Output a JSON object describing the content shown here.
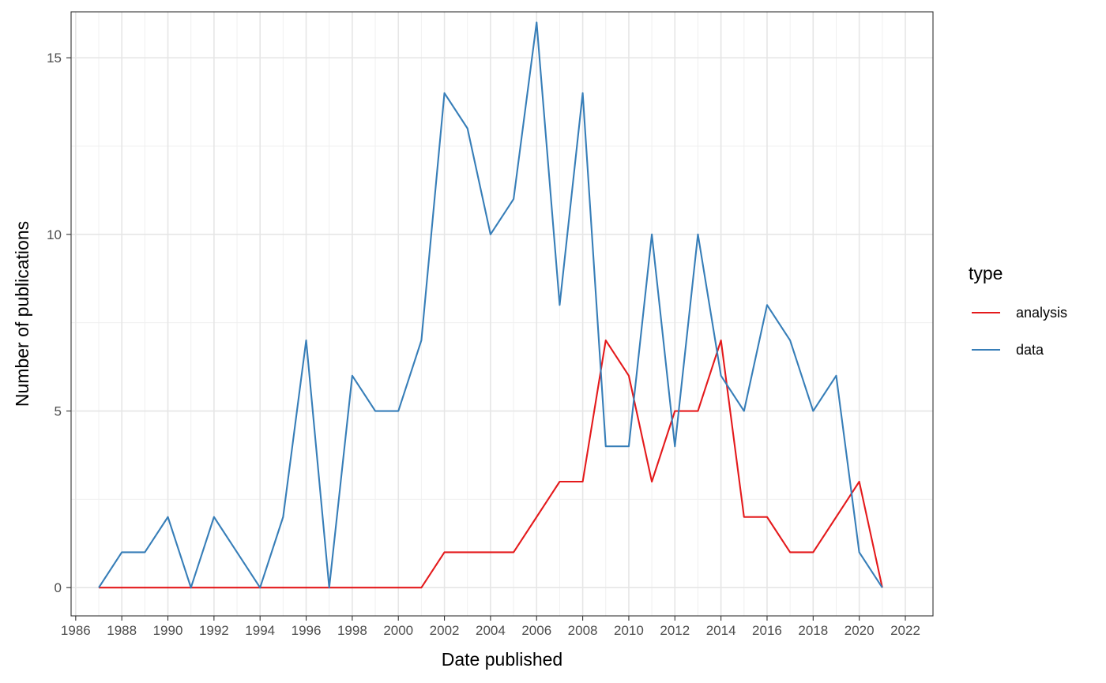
{
  "chart_data": {
    "type": "line",
    "xlabel": "Date published",
    "ylabel": "Number of publications",
    "xlim": [
      1985.8,
      2023.2
    ],
    "ylim": [
      -0.8,
      16.3
    ],
    "x_ticks": [
      1986,
      1988,
      1990,
      1992,
      1994,
      1996,
      1998,
      2000,
      2002,
      2004,
      2006,
      2008,
      2010,
      2012,
      2014,
      2016,
      2018,
      2020,
      2022
    ],
    "y_ticks": [
      0,
      5,
      10,
      15
    ],
    "grid": true,
    "legend": {
      "title": "type",
      "position": "right"
    },
    "x": [
      1987,
      1988,
      1989,
      1990,
      1991,
      1992,
      1993,
      1994,
      1995,
      1996,
      1997,
      1998,
      1999,
      2000,
      2001,
      2002,
      2003,
      2004,
      2005,
      2006,
      2007,
      2008,
      2009,
      2010,
      2011,
      2012,
      2013,
      2014,
      2015,
      2016,
      2017,
      2018,
      2019,
      2020,
      2021
    ],
    "series": [
      {
        "name": "analysis",
        "color": "#e41a1c",
        "values": [
          0,
          0,
          0,
          0,
          0,
          0,
          0,
          0,
          0,
          0,
          0,
          0,
          0,
          0,
          0,
          1,
          1,
          1,
          1,
          2,
          3,
          3,
          7,
          6,
          3,
          5,
          5,
          7,
          2,
          2,
          1,
          1,
          2,
          3,
          0
        ]
      },
      {
        "name": "data",
        "color": "#377eb8",
        "values": [
          0,
          1,
          1,
          2,
          0,
          2,
          1,
          0,
          2,
          7,
          0,
          6,
          5,
          5,
          7,
          14,
          13,
          10,
          11,
          16,
          8,
          14,
          4,
          4,
          10,
          4,
          10,
          6,
          5,
          8,
          7,
          5,
          6,
          1,
          0
        ]
      }
    ]
  }
}
